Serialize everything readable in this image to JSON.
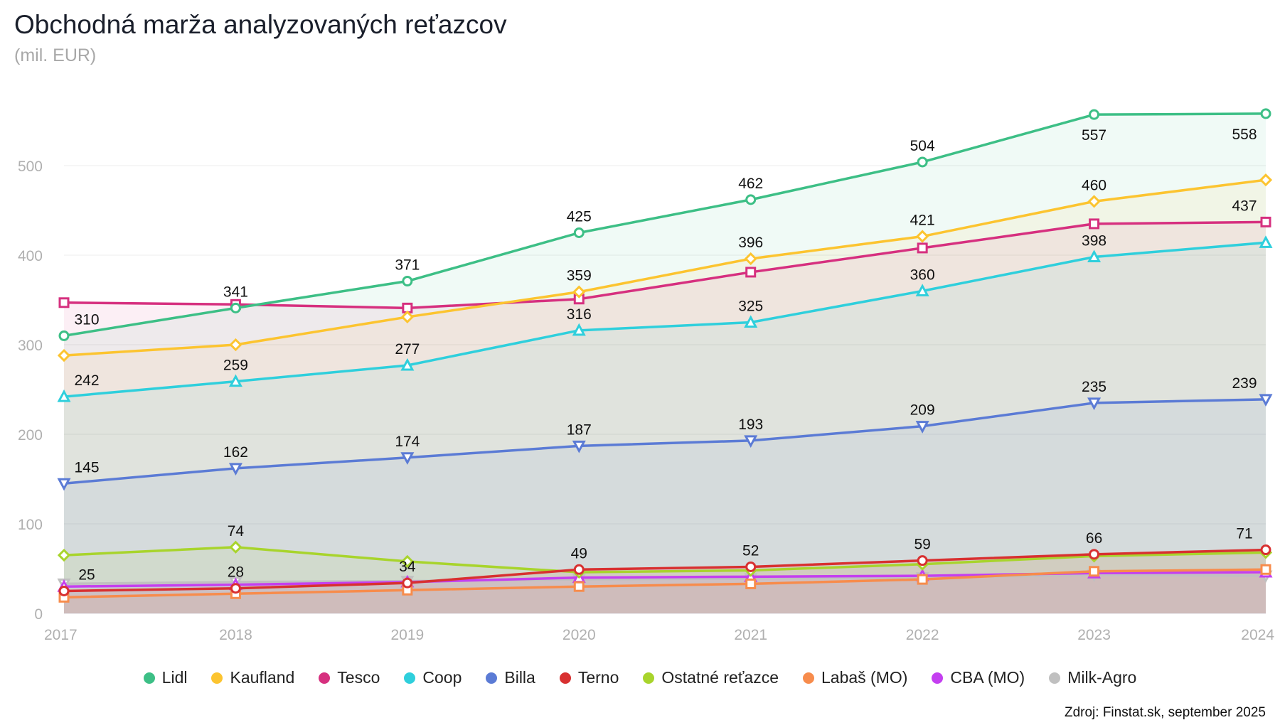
{
  "title": "Obchodná marža analyzovaných reťazcov",
  "subtitle": "(mil. EUR)",
  "source": "Zdroj: Finstat.sk, september 2025",
  "chart_data": {
    "type": "area",
    "title": "Obchodná marža analyzovaných reťazcov",
    "subtitle": "(mil. EUR)",
    "x": [
      "2017",
      "2018",
      "2019",
      "2020",
      "2021",
      "2022",
      "2023",
      "2024"
    ],
    "yticks": [
      0,
      100,
      200,
      300,
      400,
      500
    ],
    "ylim": [
      0,
      565
    ],
    "grid": true,
    "legend_position": "bottom",
    "series": [
      {
        "name": "Lidl",
        "color": "#3dbf86",
        "marker": "circle",
        "values": [
          310,
          341,
          371,
          425,
          462,
          504,
          557,
          558
        ],
        "labels": [
          310,
          341,
          371,
          425,
          462,
          504,
          557,
          558
        ]
      },
      {
        "name": "Kaufland",
        "color": "#fcc430",
        "marker": "diamond",
        "values": [
          288,
          300,
          331,
          359,
          396,
          421,
          460,
          484
        ],
        "labels": [
          null,
          null,
          null,
          359,
          396,
          421,
          460,
          null
        ]
      },
      {
        "name": "Tesco",
        "color": "#d6307f",
        "marker": "square",
        "values": [
          347,
          345,
          341,
          351,
          381,
          408,
          435,
          437
        ],
        "labels": [
          null,
          null,
          null,
          null,
          null,
          null,
          null,
          437
        ]
      },
      {
        "name": "Coop",
        "color": "#2fcfdc",
        "marker": "triangle",
        "values": [
          242,
          259,
          277,
          316,
          325,
          360,
          398,
          414
        ],
        "labels": [
          242,
          259,
          277,
          316,
          325,
          360,
          398,
          null
        ]
      },
      {
        "name": "Billa",
        "color": "#5b7bd5",
        "marker": "triangle-down",
        "values": [
          145,
          162,
          174,
          187,
          193,
          209,
          235,
          239
        ],
        "labels": [
          145,
          162,
          174,
          187,
          193,
          209,
          235,
          239
        ]
      },
      {
        "name": "Terno",
        "color": "#d83030",
        "marker": "circle",
        "values": [
          25,
          28,
          34,
          49,
          52,
          59,
          66,
          71
        ],
        "labels": [
          25,
          28,
          34,
          49,
          52,
          59,
          66,
          71
        ]
      },
      {
        "name": "Ostatné reťazce",
        "color": "#a8d42c",
        "marker": "diamond",
        "values": [
          65,
          74,
          58,
          46,
          48,
          55,
          64,
          68
        ],
        "labels": [
          null,
          74,
          null,
          null,
          null,
          null,
          null,
          null
        ]
      },
      {
        "name": "Labaš (MO)",
        "color": "#f78c4c",
        "marker": "square",
        "values": [
          18,
          22,
          26,
          30,
          33,
          38,
          47,
          49
        ],
        "labels": [
          null,
          null,
          null,
          null,
          null,
          null,
          null,
          null
        ]
      },
      {
        "name": "CBA (MO)",
        "color": "#c43ff0",
        "marker": "triangle",
        "values": [
          30,
          32,
          35,
          40,
          41,
          42,
          45,
          46
        ],
        "labels": [
          null,
          null,
          null,
          null,
          null,
          null,
          null,
          null
        ]
      },
      {
        "name": "Milk-Agro",
        "color": "#c0c0c0",
        "marker": "triangle-down",
        "values": [
          33,
          35,
          36,
          38,
          39,
          40,
          43,
          42
        ],
        "labels": [
          null,
          null,
          null,
          null,
          null,
          null,
          null,
          null
        ]
      }
    ]
  }
}
